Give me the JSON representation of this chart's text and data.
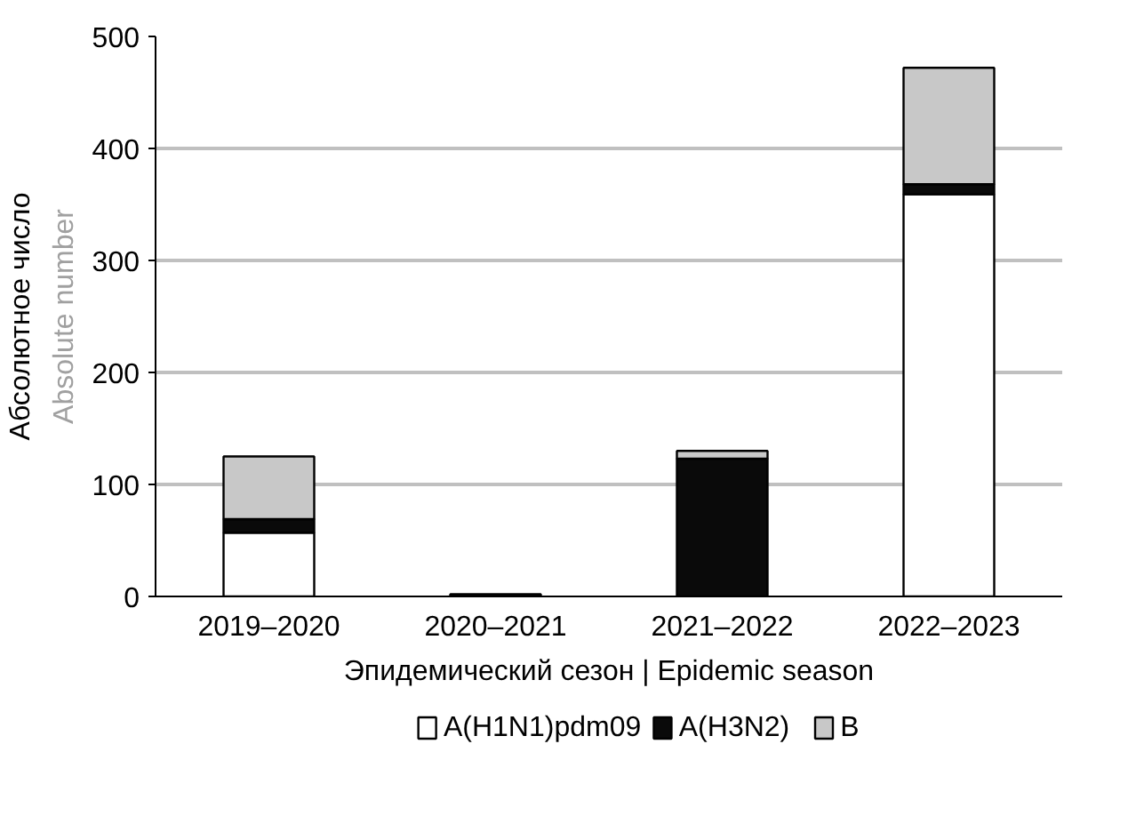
{
  "chart_data": {
    "type": "bar",
    "stacked": true,
    "categories": [
      "2019–2020",
      "2020–2021",
      "2021–2022",
      "2022–2023"
    ],
    "xlabel": "Эпидемический сезон | Epidemic season",
    "ylabel": "Абсолютное число",
    "y2label": "Absolute number",
    "series": [
      {
        "name": "A(H1N1)pdm09",
        "color": "#ffffff",
        "values": [
          57,
          0,
          0,
          359
        ]
      },
      {
        "name": "A(H3N2)",
        "color": "#0a0a0a",
        "values": [
          12,
          2,
          123,
          9
        ]
      },
      {
        "name": "B",
        "color": "#c8c8c8",
        "values": [
          56,
          0,
          7,
          104
        ]
      }
    ],
    "ylim": [
      0,
      500
    ],
    "yticks": [
      0,
      100,
      200,
      300,
      400,
      500
    ],
    "grid": "y",
    "legend": "bottom"
  }
}
